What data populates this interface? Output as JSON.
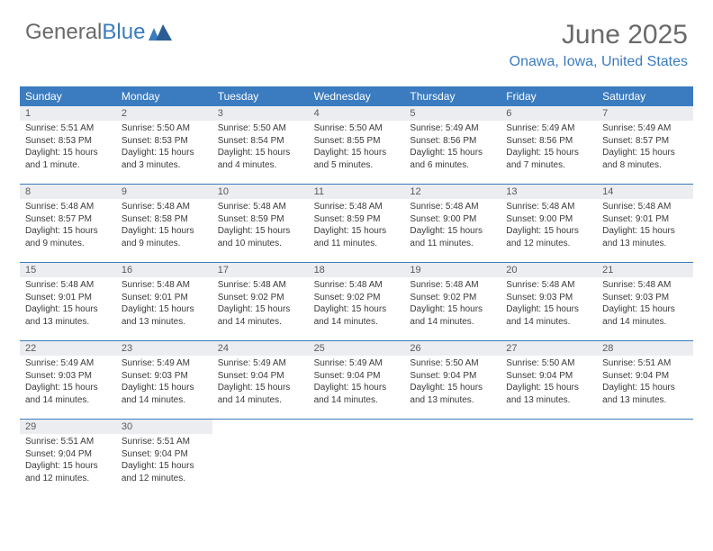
{
  "logo": {
    "gray": "General",
    "blue": "Blue"
  },
  "title": "June 2025",
  "location": "Onawa, Iowa, United States",
  "colors": {
    "accent": "#3b7bbf",
    "header_gray": "#6a6a6a",
    "daynum_bg": "#ebedf0",
    "text": "#333333",
    "bg": "#ffffff"
  },
  "day_names": [
    "Sunday",
    "Monday",
    "Tuesday",
    "Wednesday",
    "Thursday",
    "Friday",
    "Saturday"
  ],
  "weeks": [
    [
      {
        "n": "1",
        "sr": "5:51 AM",
        "ss": "8:53 PM",
        "dl": "15 hours and 1 minute."
      },
      {
        "n": "2",
        "sr": "5:50 AM",
        "ss": "8:53 PM",
        "dl": "15 hours and 3 minutes."
      },
      {
        "n": "3",
        "sr": "5:50 AM",
        "ss": "8:54 PM",
        "dl": "15 hours and 4 minutes."
      },
      {
        "n": "4",
        "sr": "5:50 AM",
        "ss": "8:55 PM",
        "dl": "15 hours and 5 minutes."
      },
      {
        "n": "5",
        "sr": "5:49 AM",
        "ss": "8:56 PM",
        "dl": "15 hours and 6 minutes."
      },
      {
        "n": "6",
        "sr": "5:49 AM",
        "ss": "8:56 PM",
        "dl": "15 hours and 7 minutes."
      },
      {
        "n": "7",
        "sr": "5:49 AM",
        "ss": "8:57 PM",
        "dl": "15 hours and 8 minutes."
      }
    ],
    [
      {
        "n": "8",
        "sr": "5:48 AM",
        "ss": "8:57 PM",
        "dl": "15 hours and 9 minutes."
      },
      {
        "n": "9",
        "sr": "5:48 AM",
        "ss": "8:58 PM",
        "dl": "15 hours and 9 minutes."
      },
      {
        "n": "10",
        "sr": "5:48 AM",
        "ss": "8:59 PM",
        "dl": "15 hours and 10 minutes."
      },
      {
        "n": "11",
        "sr": "5:48 AM",
        "ss": "8:59 PM",
        "dl": "15 hours and 11 minutes."
      },
      {
        "n": "12",
        "sr": "5:48 AM",
        "ss": "9:00 PM",
        "dl": "15 hours and 11 minutes."
      },
      {
        "n": "13",
        "sr": "5:48 AM",
        "ss": "9:00 PM",
        "dl": "15 hours and 12 minutes."
      },
      {
        "n": "14",
        "sr": "5:48 AM",
        "ss": "9:01 PM",
        "dl": "15 hours and 13 minutes."
      }
    ],
    [
      {
        "n": "15",
        "sr": "5:48 AM",
        "ss": "9:01 PM",
        "dl": "15 hours and 13 minutes."
      },
      {
        "n": "16",
        "sr": "5:48 AM",
        "ss": "9:01 PM",
        "dl": "15 hours and 13 minutes."
      },
      {
        "n": "17",
        "sr": "5:48 AM",
        "ss": "9:02 PM",
        "dl": "15 hours and 14 minutes."
      },
      {
        "n": "18",
        "sr": "5:48 AM",
        "ss": "9:02 PM",
        "dl": "15 hours and 14 minutes."
      },
      {
        "n": "19",
        "sr": "5:48 AM",
        "ss": "9:02 PM",
        "dl": "15 hours and 14 minutes."
      },
      {
        "n": "20",
        "sr": "5:48 AM",
        "ss": "9:03 PM",
        "dl": "15 hours and 14 minutes."
      },
      {
        "n": "21",
        "sr": "5:48 AM",
        "ss": "9:03 PM",
        "dl": "15 hours and 14 minutes."
      }
    ],
    [
      {
        "n": "22",
        "sr": "5:49 AM",
        "ss": "9:03 PM",
        "dl": "15 hours and 14 minutes."
      },
      {
        "n": "23",
        "sr": "5:49 AM",
        "ss": "9:03 PM",
        "dl": "15 hours and 14 minutes."
      },
      {
        "n": "24",
        "sr": "5:49 AM",
        "ss": "9:04 PM",
        "dl": "15 hours and 14 minutes."
      },
      {
        "n": "25",
        "sr": "5:49 AM",
        "ss": "9:04 PM",
        "dl": "15 hours and 14 minutes."
      },
      {
        "n": "26",
        "sr": "5:50 AM",
        "ss": "9:04 PM",
        "dl": "15 hours and 13 minutes."
      },
      {
        "n": "27",
        "sr": "5:50 AM",
        "ss": "9:04 PM",
        "dl": "15 hours and 13 minutes."
      },
      {
        "n": "28",
        "sr": "5:51 AM",
        "ss": "9:04 PM",
        "dl": "15 hours and 13 minutes."
      }
    ],
    [
      {
        "n": "29",
        "sr": "5:51 AM",
        "ss": "9:04 PM",
        "dl": "15 hours and 12 minutes."
      },
      {
        "n": "30",
        "sr": "5:51 AM",
        "ss": "9:04 PM",
        "dl": "15 hours and 12 minutes."
      },
      null,
      null,
      null,
      null,
      null
    ]
  ]
}
